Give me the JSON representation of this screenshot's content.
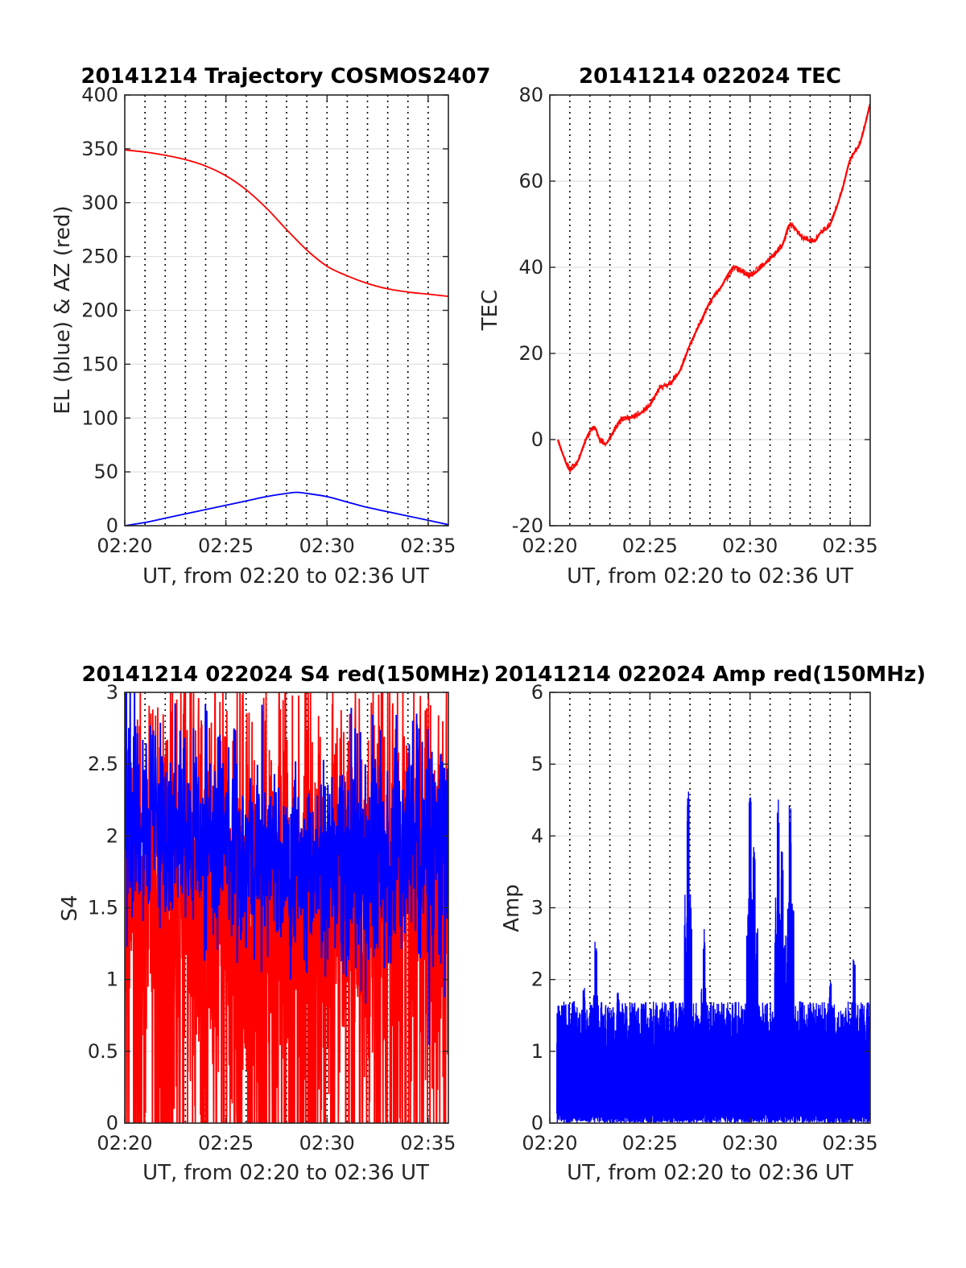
{
  "chart_data": [
    {
      "type": "line",
      "title": "20141214 Trajectory COSMOS2407",
      "xlabel": "UT, from 02:20 to 02:36 UT",
      "ylabel": "EL (blue) & AZ (red)",
      "x_unit": "minutes after 02:20 UT",
      "xlim": [
        0,
        16
      ],
      "ylim": [
        0,
        400
      ],
      "xticks": [
        0,
        5,
        10,
        15
      ],
      "xtick_labels": [
        "02:20",
        "02:25",
        "02:30",
        "02:35"
      ],
      "yticks": [
        0,
        50,
        100,
        150,
        200,
        250,
        300,
        350,
        400
      ],
      "ytick_labels": [
        "0",
        "50",
        "100",
        "150",
        "200",
        "250",
        "300",
        "350",
        "400"
      ],
      "grid": true,
      "series": [
        {
          "name": "AZ",
          "color": "#ff0000",
          "x": [
            0,
            1,
            2,
            3,
            4,
            5,
            6,
            7,
            8,
            9,
            10,
            11,
            12,
            13,
            14,
            15,
            16
          ],
          "y": [
            349,
            347,
            344,
            340,
            334,
            325,
            312,
            295,
            275,
            256,
            241,
            232,
            225,
            220,
            217,
            215,
            213
          ]
        },
        {
          "name": "EL",
          "color": "#0000ff",
          "x": [
            0,
            1,
            2,
            3,
            4,
            5,
            6,
            7,
            8,
            8.5,
            9,
            10,
            11,
            12,
            13,
            14,
            15,
            16
          ],
          "y": [
            0,
            3,
            7,
            11,
            15,
            19,
            23,
            27,
            30,
            31,
            30,
            27,
            22,
            17,
            13,
            9,
            5,
            1
          ]
        }
      ]
    },
    {
      "type": "line",
      "title": "20141214 022024 TEC",
      "xlabel": "UT, from 02:20 to 02:36 UT",
      "ylabel": "TEC",
      "x_unit": "minutes after 02:20 UT",
      "xlim": [
        0,
        16
      ],
      "ylim": [
        -20,
        80
      ],
      "xticks": [
        0,
        5,
        10,
        15
      ],
      "xtick_labels": [
        "02:20",
        "02:25",
        "02:30",
        "02:35"
      ],
      "yticks": [
        -20,
        0,
        20,
        40,
        60,
        80
      ],
      "ytick_labels": [
        "-20",
        "0",
        "20",
        "40",
        "60",
        "80"
      ],
      "grid": true,
      "series": [
        {
          "name": "TEC",
          "color": "#ff0000",
          "x": [
            0.4,
            0.7,
            1.0,
            1.4,
            1.8,
            2.2,
            2.5,
            2.8,
            3.2,
            3.6,
            4.0,
            4.5,
            5.0,
            5.5,
            6.0,
            6.5,
            7.0,
            7.5,
            8.0,
            8.5,
            9.2,
            10.0,
            11.0,
            11.6,
            12.0,
            12.6,
            13.2,
            13.5,
            14.0,
            14.6,
            15.0,
            15.5,
            16.0
          ],
          "y": [
            0,
            -4,
            -7,
            -5,
            0,
            3,
            0,
            -1,
            2,
            5,
            5,
            6,
            8,
            12,
            13,
            16,
            22,
            27,
            32,
            35,
            40,
            38,
            42,
            45,
            50,
            47,
            46,
            48,
            50,
            58,
            65,
            69,
            78
          ]
        }
      ]
    },
    {
      "type": "line",
      "title": "20141214 022024 S4 red(150MHz)",
      "xlabel": "UT, from 02:20 to 02:36 UT",
      "ylabel": "S4",
      "x_unit": "minutes after 02:20 UT",
      "xlim": [
        0,
        16
      ],
      "ylim": [
        0,
        3
      ],
      "xticks": [
        0,
        5,
        10,
        15
      ],
      "xtick_labels": [
        "02:20",
        "02:25",
        "02:30",
        "02:35"
      ],
      "yticks": [
        0,
        0.5,
        1,
        1.5,
        2,
        2.5,
        3
      ],
      "ytick_labels": [
        "0",
        "0.5",
        "1",
        "1.5",
        "2",
        "2.5",
        "3"
      ],
      "grid": true,
      "series": [
        {
          "name": "S4 red",
          "color": "#ff0000",
          "samples": 1500,
          "seed": 7,
          "clip_top": 3.0,
          "band_low": 0,
          "band_high": 3,
          "envelope": [
            [
              0,
              1.7,
              0.65
            ],
            [
              1,
              1.7,
              0.65
            ],
            [
              2,
              1.6,
              0.75
            ],
            [
              4,
              1.6,
              0.8
            ],
            [
              6,
              1.5,
              0.8
            ],
            [
              8,
              1.6,
              0.8
            ],
            [
              10,
              1.5,
              0.8
            ],
            [
              12,
              1.6,
              0.8
            ],
            [
              14,
              1.6,
              0.8
            ],
            [
              16,
              1.6,
              0.8
            ]
          ]
        },
        {
          "name": "S4 blue",
          "color": "#0000ff",
          "samples": 1200,
          "seed": 19,
          "clip_top": 3.0,
          "band_low": 0,
          "band_high": 3,
          "envelope": [
            [
              0,
              2.3,
              0.45
            ],
            [
              1,
              2.1,
              0.35
            ],
            [
              2,
              2.0,
              0.35
            ],
            [
              4,
              2.0,
              0.35
            ],
            [
              6,
              1.9,
              0.35
            ],
            [
              8,
              1.8,
              0.3
            ],
            [
              10,
              1.75,
              0.35
            ],
            [
              12,
              1.85,
              0.4
            ],
            [
              14,
              1.9,
              0.4
            ],
            [
              16,
              2.0,
              0.45
            ]
          ]
        }
      ]
    },
    {
      "type": "line",
      "title": "20141214 022024 Amp red(150MHz)",
      "xlabel": "UT, from 02:20 to 02:36 UT",
      "ylabel": "Amp",
      "x_unit": "minutes after 02:20 UT",
      "xlim": [
        0,
        16
      ],
      "ylim": [
        0,
        6
      ],
      "xticks": [
        0,
        5,
        10,
        15
      ],
      "xtick_labels": [
        "02:20",
        "02:25",
        "02:30",
        "02:35"
      ],
      "yticks": [
        0,
        1,
        2,
        3,
        4,
        5,
        6
      ],
      "ytick_labels": [
        "0",
        "1",
        "2",
        "3",
        "4",
        "5",
        "6"
      ],
      "grid": true,
      "series": [
        {
          "name": "Amp",
          "color": "#0000ff",
          "x_start": 0.35,
          "samples": 1400,
          "seed": 3,
          "typical_peak": 1.7,
          "spikes": [
            [
              0.45,
              1.65
            ],
            [
              1.7,
              1.9
            ],
            [
              2.3,
              2.55
            ],
            [
              3.4,
              1.85
            ],
            [
              6.9,
              4.65
            ],
            [
              7.7,
              2.75
            ],
            [
              10.0,
              4.7
            ],
            [
              10.2,
              3.9
            ],
            [
              11.4,
              4.65
            ],
            [
              11.6,
              3.8
            ],
            [
              12.0,
              4.45
            ],
            [
              14.0,
              2.0
            ],
            [
              15.2,
              2.3
            ]
          ]
        }
      ]
    }
  ]
}
